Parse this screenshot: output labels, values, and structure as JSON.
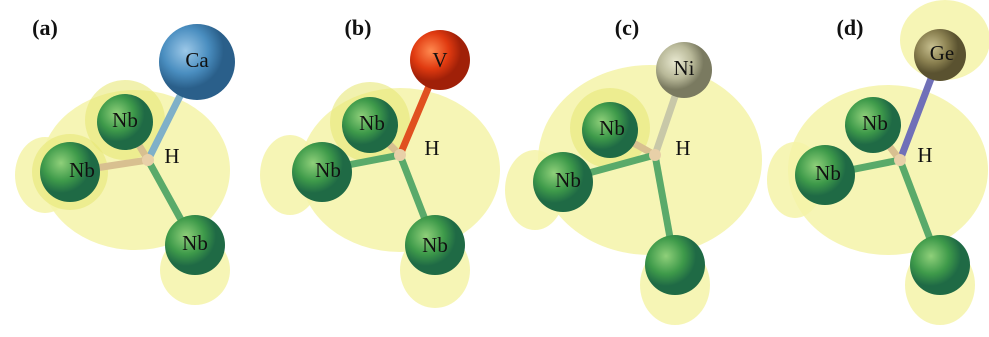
{
  "panels": [
    {
      "label": "(a)",
      "atoms": [
        "Ca",
        "Nb",
        "Nb",
        "H",
        "Nb"
      ]
    },
    {
      "label": "(b)",
      "atoms": [
        "V",
        "Nb",
        "Nb",
        "H",
        "Nb"
      ]
    },
    {
      "label": "(c)",
      "atoms": [
        "Ni",
        "Nb",
        "Nb",
        "H"
      ]
    },
    {
      "label": "(d)",
      "atoms": [
        "Ge",
        "Nb",
        "Nb",
        "H"
      ]
    }
  ]
}
